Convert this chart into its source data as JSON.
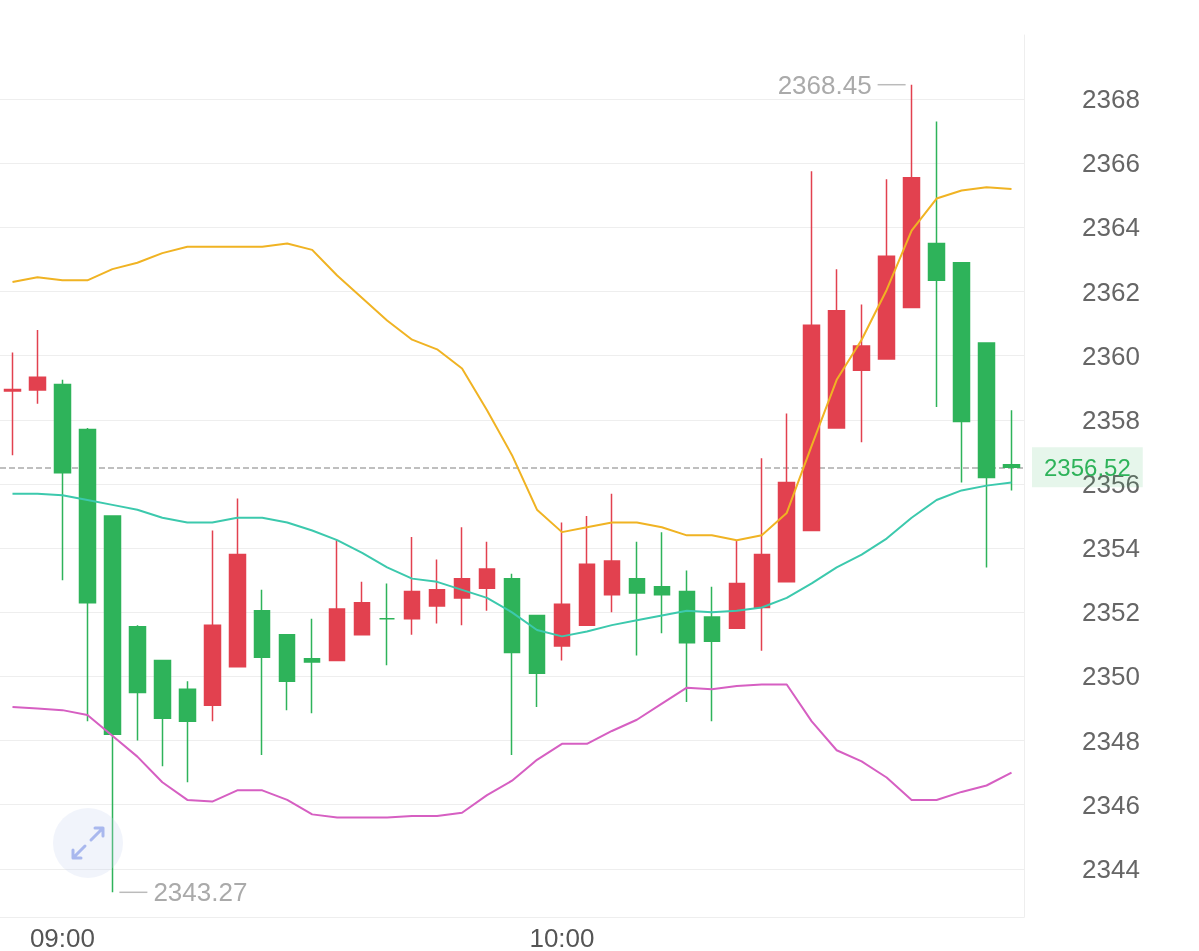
{
  "chart_data": {
    "type": "candlestick",
    "categories": [
      null,
      null,
      "09:00",
      null,
      null,
      null,
      null,
      null,
      null,
      null,
      null,
      null,
      null,
      null,
      null,
      null,
      null,
      null,
      null,
      null,
      null,
      null,
      "10:00",
      null,
      null,
      null,
      null,
      null,
      null,
      null,
      null,
      null,
      null,
      null,
      null,
      null,
      null,
      null,
      null,
      null,
      null
    ],
    "series": [
      {
        "colors": [
          "#e2414f",
          "#e2414f",
          "#2eb35a",
          "#2eb35a",
          "#2eb35a",
          "#2eb35a",
          "#2eb35a",
          "#2eb35a",
          "#e2414f",
          "#e2414f",
          "#2eb35a",
          "#2eb35a",
          "#2eb35a",
          "#e2414f",
          "#e2414f",
          "#2eb35a",
          "#e2414f",
          "#e2414f",
          "#e2414f",
          "#e2414f",
          "#2eb35a",
          "#2eb35a",
          "#e2414f",
          "#e2414f",
          "#e2414f",
          "#2eb35a",
          "#2eb35a",
          "#2eb35a",
          "#2eb35a",
          "#e2414f",
          "#e2414f",
          "#e2414f",
          "#e2414f",
          "#e2414f",
          "#e2414f",
          "#e2414f",
          "#e2414f",
          "#2eb35a",
          "#2eb35a",
          "#2eb35a",
          "#2eb35a"
        ],
        "ohlc": [
          [
            2358.9,
            2360.1,
            2356.9,
            2358.95
          ],
          [
            2358.93,
            2360.8,
            2358.5,
            2359.33
          ],
          [
            2359.1,
            2359.25,
            2353.0,
            2356.35
          ],
          [
            2357.7,
            2357.75,
            2348.6,
            2352.3
          ],
          [
            2355.0,
            2355.0,
            2343.27,
            2348.2
          ],
          [
            2351.55,
            2351.6,
            2348.0,
            2349.5
          ],
          [
            2350.5,
            2350.5,
            2347.2,
            2348.7
          ],
          [
            2349.6,
            2349.85,
            2346.7,
            2348.6
          ],
          [
            2349.1,
            2354.55,
            2348.6,
            2351.6
          ],
          [
            2350.3,
            2355.55,
            2350.3,
            2353.8
          ],
          [
            2352.05,
            2352.7,
            2347.55,
            2350.6
          ],
          [
            2351.3,
            2351.3,
            2348.95,
            2349.85
          ],
          [
            2350.55,
            2351.8,
            2348.85,
            2350.45
          ],
          [
            2350.5,
            2354.25,
            2350.5,
            2352.1
          ],
          [
            2351.3,
            2352.95,
            2351.3,
            2352.3
          ],
          [
            2351.8,
            2352.9,
            2350.35,
            2351.8
          ],
          [
            2351.8,
            2354.35,
            2351.3,
            2352.65
          ],
          [
            2352.2,
            2353.65,
            2351.65,
            2352.7
          ],
          [
            2352.45,
            2354.65,
            2351.6,
            2353.05
          ],
          [
            2352.75,
            2354.2,
            2352.05,
            2353.35
          ],
          [
            2353.05,
            2353.2,
            2347.55,
            2350.75
          ],
          [
            2351.9,
            2351.9,
            2349.05,
            2350.1
          ],
          [
            2350.95,
            2354.8,
            2350.5,
            2352.25
          ],
          [
            2351.6,
            2355.0,
            2351.6,
            2353.5
          ],
          [
            2352.55,
            2355.7,
            2352.0,
            2353.6
          ],
          [
            2353.05,
            2354.2,
            2350.65,
            2352.6
          ],
          [
            2352.8,
            2354.5,
            2351.35,
            2352.55
          ],
          [
            2352.65,
            2353.3,
            2349.2,
            2351.05
          ],
          [
            2351.85,
            2352.8,
            2348.6,
            2351.1
          ],
          [
            2351.5,
            2354.25,
            2351.5,
            2352.9
          ],
          [
            2352.15,
            2356.8,
            2350.8,
            2353.8
          ],
          [
            2352.95,
            2358.2,
            2352.95,
            2356.05
          ],
          [
            2354.55,
            2365.75,
            2354.55,
            2360.95
          ],
          [
            2357.75,
            2362.7,
            2357.75,
            2361.4
          ],
          [
            2359.55,
            2361.6,
            2357.3,
            2360.3
          ],
          [
            2359.9,
            2365.5,
            2359.9,
            2363.1
          ],
          [
            2361.5,
            2368.45,
            2361.5,
            2365.55
          ],
          [
            2363.5,
            2367.3,
            2358.4,
            2362.35
          ],
          [
            2362.9,
            2362.9,
            2356.05,
            2357.95
          ],
          [
            2360.4,
            2360.4,
            2353.4,
            2356.2
          ],
          [
            2356.6,
            2358.3,
            2355.8,
            2356.52
          ]
        ]
      },
      {
        "type": "line",
        "color": "#f0b323",
        "values": [
          2362.3,
          2362.45,
          2362.35,
          2362.35,
          2362.7,
          2362.9,
          2363.2,
          2363.4,
          2363.4,
          2363.4,
          2363.4,
          2363.5,
          2363.3,
          2362.5,
          2361.8,
          2361.1,
          2360.5,
          2360.2,
          2359.6,
          2358.3,
          2356.9,
          2355.2,
          2354.5,
          2354.65,
          2354.8,
          2354.8,
          2354.65,
          2354.4,
          2354.4,
          2354.25,
          2354.4,
          2355.1,
          2357.2,
          2359.25,
          2360.5,
          2362.05,
          2363.9,
          2364.9,
          2365.15,
          2365.25,
          2365.2
        ]
      },
      {
        "type": "line",
        "color": "#3cc9ad",
        "values": [
          2355.7,
          2355.7,
          2355.65,
          2355.5,
          2355.35,
          2355.2,
          2354.95,
          2354.8,
          2354.8,
          2354.95,
          2354.95,
          2354.8,
          2354.55,
          2354.25,
          2353.85,
          2353.4,
          2353.05,
          2352.95,
          2352.7,
          2352.45,
          2352.0,
          2351.45,
          2351.25,
          2351.4,
          2351.6,
          2351.75,
          2351.9,
          2352.05,
          2352.0,
          2352.05,
          2352.15,
          2352.45,
          2352.9,
          2353.4,
          2353.8,
          2354.3,
          2354.95,
          2355.5,
          2355.8,
          2355.95,
          2356.05
        ]
      },
      {
        "type": "line",
        "color": "#d65fc2",
        "values": [
          2349.05,
          2349.0,
          2348.95,
          2348.8,
          2348.15,
          2347.5,
          2346.7,
          2346.15,
          2346.1,
          2346.45,
          2346.45,
          2346.15,
          2345.7,
          2345.6,
          2345.6,
          2345.6,
          2345.65,
          2345.65,
          2345.75,
          2346.3,
          2346.75,
          2347.4,
          2347.9,
          2347.9,
          2348.3,
          2348.65,
          2349.15,
          2349.65,
          2349.6,
          2349.7,
          2349.75,
          2349.75,
          2348.6,
          2347.7,
          2347.35,
          2346.85,
          2346.15,
          2346.15,
          2346.4,
          2346.6,
          2347.0
        ]
      }
    ],
    "ylim": [
      2342.5,
      2370
    ],
    "yticks": [
      2344,
      2346,
      2348,
      2350,
      2352,
      2354,
      2356,
      2358,
      2360,
      2362,
      2364,
      2366,
      2368
    ],
    "grid": "y",
    "marker": "none",
    "ref_lines": [
      {
        "axis": "y",
        "value": 2356.52,
        "label": "2356.52",
        "color": "#aaaaaa",
        "line_style": "dashed"
      }
    ],
    "annotations": [
      "2368.45",
      "2343.27"
    ]
  }
}
